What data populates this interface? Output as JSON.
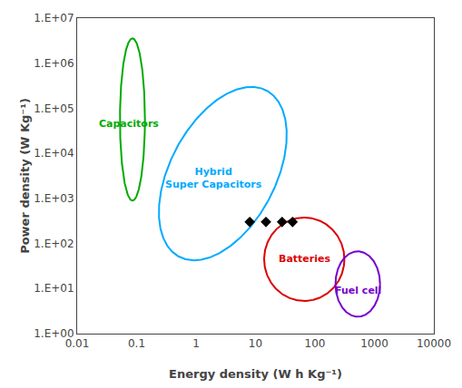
{
  "chart_data": {
    "type": "scatter",
    "xlabel": "Energy density (W h Kg⁻¹)",
    "ylabel": "Power density (W Kg⁻¹)",
    "log": true,
    "grid": false,
    "xlim": [
      0.01,
      10000
    ],
    "ylim": [
      1,
      10000000.0
    ],
    "xticks": [
      0.01,
      0.1,
      1,
      10,
      100,
      1000,
      10000
    ],
    "yticks": [
      {
        "value": 1,
        "label": "1.E+00"
      },
      {
        "value": 10,
        "label": "1.E+01"
      },
      {
        "value": 100,
        "label": "1.E+02"
      },
      {
        "value": 1000,
        "label": "1.E+03"
      },
      {
        "value": 10000,
        "label": "1.E+04"
      },
      {
        "value": 100000,
        "label": "1.E+05"
      },
      {
        "value": 1000000,
        "label": "1.E+06"
      },
      {
        "value": 10000000,
        "label": "1.E+07"
      }
    ],
    "x": [
      8,
      15,
      28,
      42
    ],
    "values": [
      300,
      300,
      300,
      300
    ],
    "color": "#000000",
    "marker": "diamond",
    "ellipses": [
      {
        "label": "Capacitors",
        "color": "#00aa00",
        "cx_log": -1.07,
        "cy_log": 4.75,
        "w_log": 0.42,
        "h_log": 3.6,
        "angle": 0,
        "label_x_log": -1.13,
        "label_y_log": 4.65
      },
      {
        "label": "Hybrid\nSuper Capacitors",
        "color": "#00aaff",
        "cx_log": 0.45,
        "cy_log": 3.55,
        "w_log": 1.85,
        "h_log": 4.0,
        "angle": -18,
        "label_x_log": 0.3,
        "label_y_log": 3.45
      },
      {
        "label": "Batteries",
        "color": "#dd0000",
        "cx_log": 1.82,
        "cy_log": 1.65,
        "w_log": 1.35,
        "h_log": 1.85,
        "angle": 0,
        "label_x_log": 1.82,
        "label_y_log": 1.65
      },
      {
        "label": "Fuel cell",
        "color": "#7700cc",
        "cx_log": 2.72,
        "cy_log": 1.1,
        "w_log": 0.75,
        "h_log": 1.45,
        "angle": 0,
        "label_x_log": 2.72,
        "label_y_log": 0.95
      }
    ]
  }
}
